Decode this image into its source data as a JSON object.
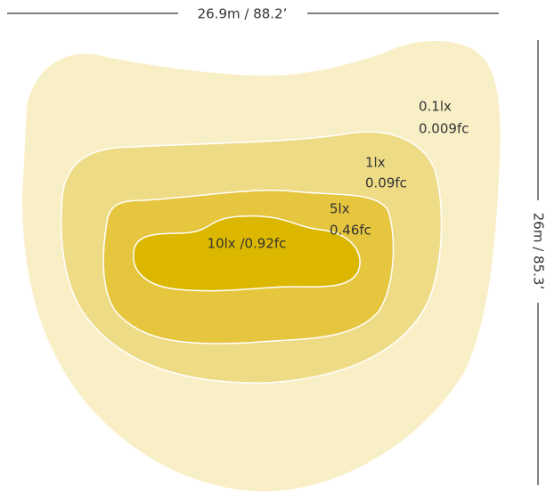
{
  "dimensions": {
    "width": "26.9m / 88.2’",
    "height": "26m / 85.3’"
  },
  "contours": [
    {
      "lines": [
        "0.1lx",
        "0.009fc"
      ]
    },
    {
      "lines": [
        "1lx",
        "0.09fc"
      ]
    },
    {
      "lines": [
        "5lx",
        "0.46fc"
      ]
    },
    {
      "lines": [
        "10lx /0.92fc"
      ]
    }
  ]
}
